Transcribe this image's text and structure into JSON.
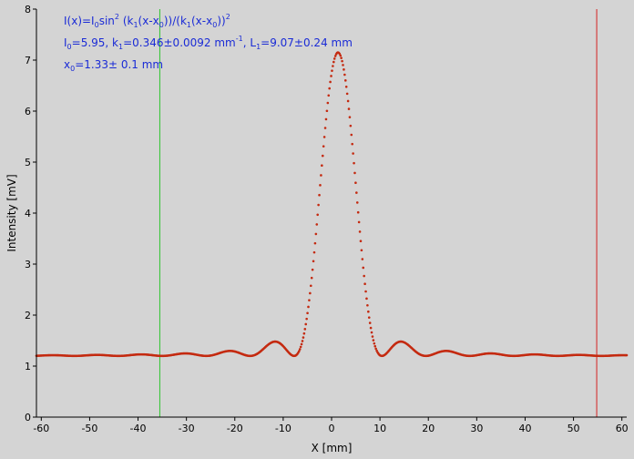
{
  "chart_data": {
    "type": "scatter",
    "xlabel": "X [mm]",
    "ylabel": "Intensity [mV]",
    "xlim": [
      -61,
      61
    ],
    "ylim": [
      0,
      8
    ],
    "x_ticks": [
      "-60",
      "-50",
      "-40",
      "-30",
      "-20",
      "-10",
      "0",
      "10",
      "20",
      "30",
      "40",
      "50",
      "60"
    ],
    "y_ticks": [
      "0",
      "1",
      "2",
      "3",
      "4",
      "5",
      "6",
      "7",
      "8"
    ],
    "grid": false,
    "annotation": {
      "formula": {
        "p1": "I(x)=I",
        "s1": "0",
        "p2": "sin",
        "sup1": "2",
        "p3": " (k",
        "s2": "1",
        "p4": "(x-x",
        "s3": "0",
        "p5": "))/(k",
        "s4": "1",
        "p6": "(x-x",
        "s5": "0",
        "p7": "))",
        "sup2": "2"
      },
      "params1": {
        "a": "I",
        "a_sub": "0",
        "b": "=5.95,  k",
        "b_sub": "1",
        "c": "=0.346±0.0092 mm",
        "c_sup": "-1",
        "d": ",   L",
        "d_sub": "1",
        "e": "=9.07±0.24 mm"
      },
      "params2": {
        "a": "x",
        "a_sub": "0",
        "b": "=1.33±  0.1 mm"
      }
    },
    "cursors": [
      {
        "name": "left-cursor",
        "x": -35.5,
        "color": "#31c531"
      },
      {
        "name": "right-cursor",
        "x": 54.8,
        "color": "#d42020"
      }
    ],
    "series": [
      {
        "marker_color": "#c42a10",
        "fit": {
          "I0": 5.95,
          "k1": 0.346,
          "x0": 1.33,
          "baseline": 1.2
        },
        "x_range": [
          -61,
          61
        ],
        "n_points": 700
      }
    ]
  }
}
